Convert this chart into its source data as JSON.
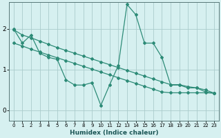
{
  "background_color": "#d6f0f0",
  "line_color": "#2d8b77",
  "grid_color": "#aacccc",
  "xlabel": "Humidex (Indice chaleur)",
  "ylim": [
    -0.25,
    2.65
  ],
  "xlim": [
    -0.5,
    23.5
  ],
  "yticks": [
    0,
    1,
    2
  ],
  "xticks": [
    0,
    1,
    2,
    3,
    4,
    5,
    6,
    7,
    8,
    9,
    10,
    11,
    12,
    13,
    14,
    15,
    16,
    17,
    18,
    19,
    20,
    21,
    22,
    23
  ],
  "line1_x": [
    0,
    1,
    2,
    3,
    4,
    5,
    6,
    7,
    8,
    9,
    10,
    11,
    12,
    13,
    14,
    15,
    16,
    17,
    18,
    19,
    20,
    21,
    22,
    23
  ],
  "line1_y": [
    2.0,
    1.65,
    1.85,
    1.4,
    1.3,
    1.25,
    0.75,
    0.62,
    0.62,
    0.68,
    0.12,
    0.62,
    1.1,
    2.6,
    2.35,
    1.65,
    1.65,
    1.3,
    0.62,
    0.62,
    0.55,
    0.55,
    0.45,
    0.42
  ],
  "line2_x": [
    0,
    1,
    2,
    3,
    4,
    5,
    6,
    7,
    8,
    9,
    10,
    11,
    12,
    13,
    14,
    15,
    16,
    17,
    18,
    19,
    20,
    21,
    22,
    23
  ],
  "line2_y": [
    1.98,
    1.85,
    1.78,
    1.7,
    1.62,
    1.54,
    1.47,
    1.4,
    1.33,
    1.26,
    1.19,
    1.12,
    1.05,
    0.98,
    0.91,
    0.84,
    0.77,
    0.7,
    0.63,
    0.63,
    0.58,
    0.55,
    0.5,
    0.42
  ],
  "line3_x": [
    0,
    1,
    2,
    3,
    4,
    5,
    6,
    7,
    8,
    9,
    10,
    11,
    12,
    13,
    14,
    15,
    16,
    17,
    18,
    19,
    20,
    21,
    22,
    23
  ],
  "line3_y": [
    1.65,
    1.58,
    1.5,
    1.43,
    1.36,
    1.29,
    1.22,
    1.15,
    1.08,
    1.01,
    0.94,
    0.87,
    0.8,
    0.73,
    0.66,
    0.59,
    0.52,
    0.45,
    0.43,
    0.43,
    0.43,
    0.43,
    0.43,
    0.42
  ]
}
